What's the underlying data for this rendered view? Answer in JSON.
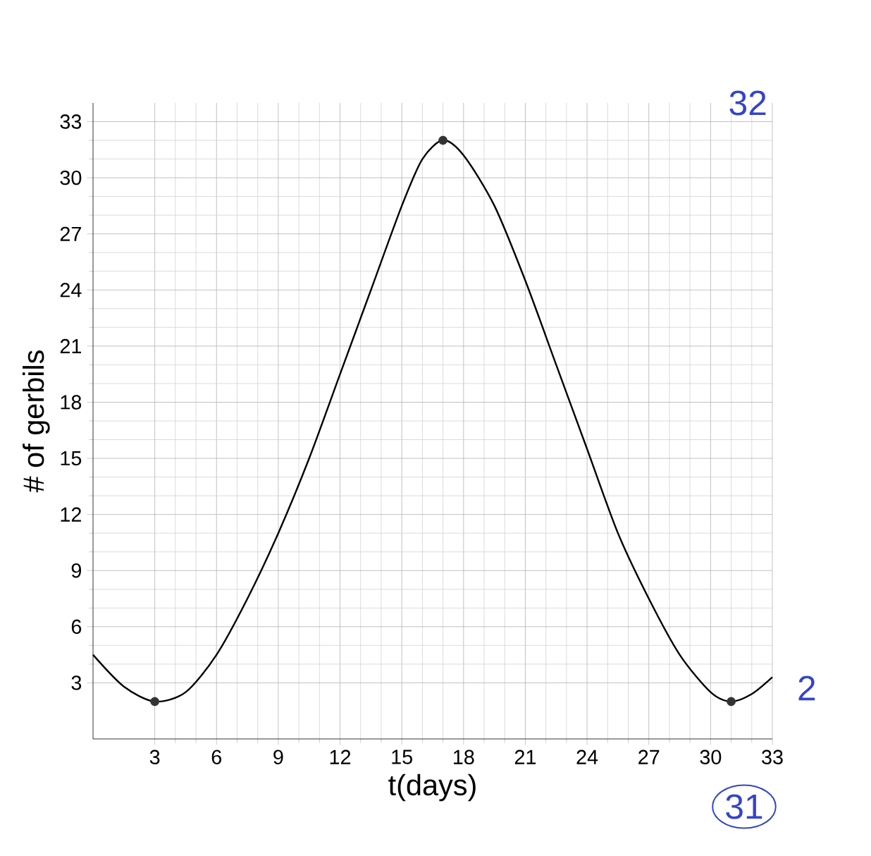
{
  "chart_data": {
    "type": "line",
    "xlabel": "t(days)",
    "ylabel": "# of gerbils",
    "series": [
      {
        "color": "#000000",
        "x": [
          0,
          1.5,
          3,
          4.5,
          6,
          7.5,
          9,
          10.5,
          12,
          13.5,
          15,
          16,
          17,
          18,
          19.5,
          21,
          22.5,
          24,
          25.5,
          27,
          28.5,
          30,
          31,
          32,
          33
        ],
        "values": [
          4.5,
          2.8,
          2,
          2.5,
          4.5,
          7.5,
          11,
          15,
          19.5,
          24,
          28.5,
          31,
          32,
          31.2,
          28.5,
          24.5,
          20,
          15.5,
          11,
          7.5,
          4.5,
          2.5,
          2,
          2.4,
          3.3
        ],
        "marker": "none"
      },
      {
        "type": "scatter",
        "color": "#333333",
        "x": [
          3,
          17,
          31
        ],
        "values": [
          2,
          32,
          2
        ],
        "marker": "circle"
      }
    ],
    "xlim": [
      0,
      33
    ],
    "ylim": [
      0,
      34
    ],
    "xticks": [
      3,
      6,
      9,
      12,
      15,
      18,
      21,
      24,
      27,
      30,
      33
    ],
    "yticks": [
      3,
      6,
      9,
      12,
      15,
      18,
      21,
      24,
      27,
      30,
      33
    ],
    "grid": true,
    "annotations": [
      "32",
      "2",
      "31"
    ]
  }
}
